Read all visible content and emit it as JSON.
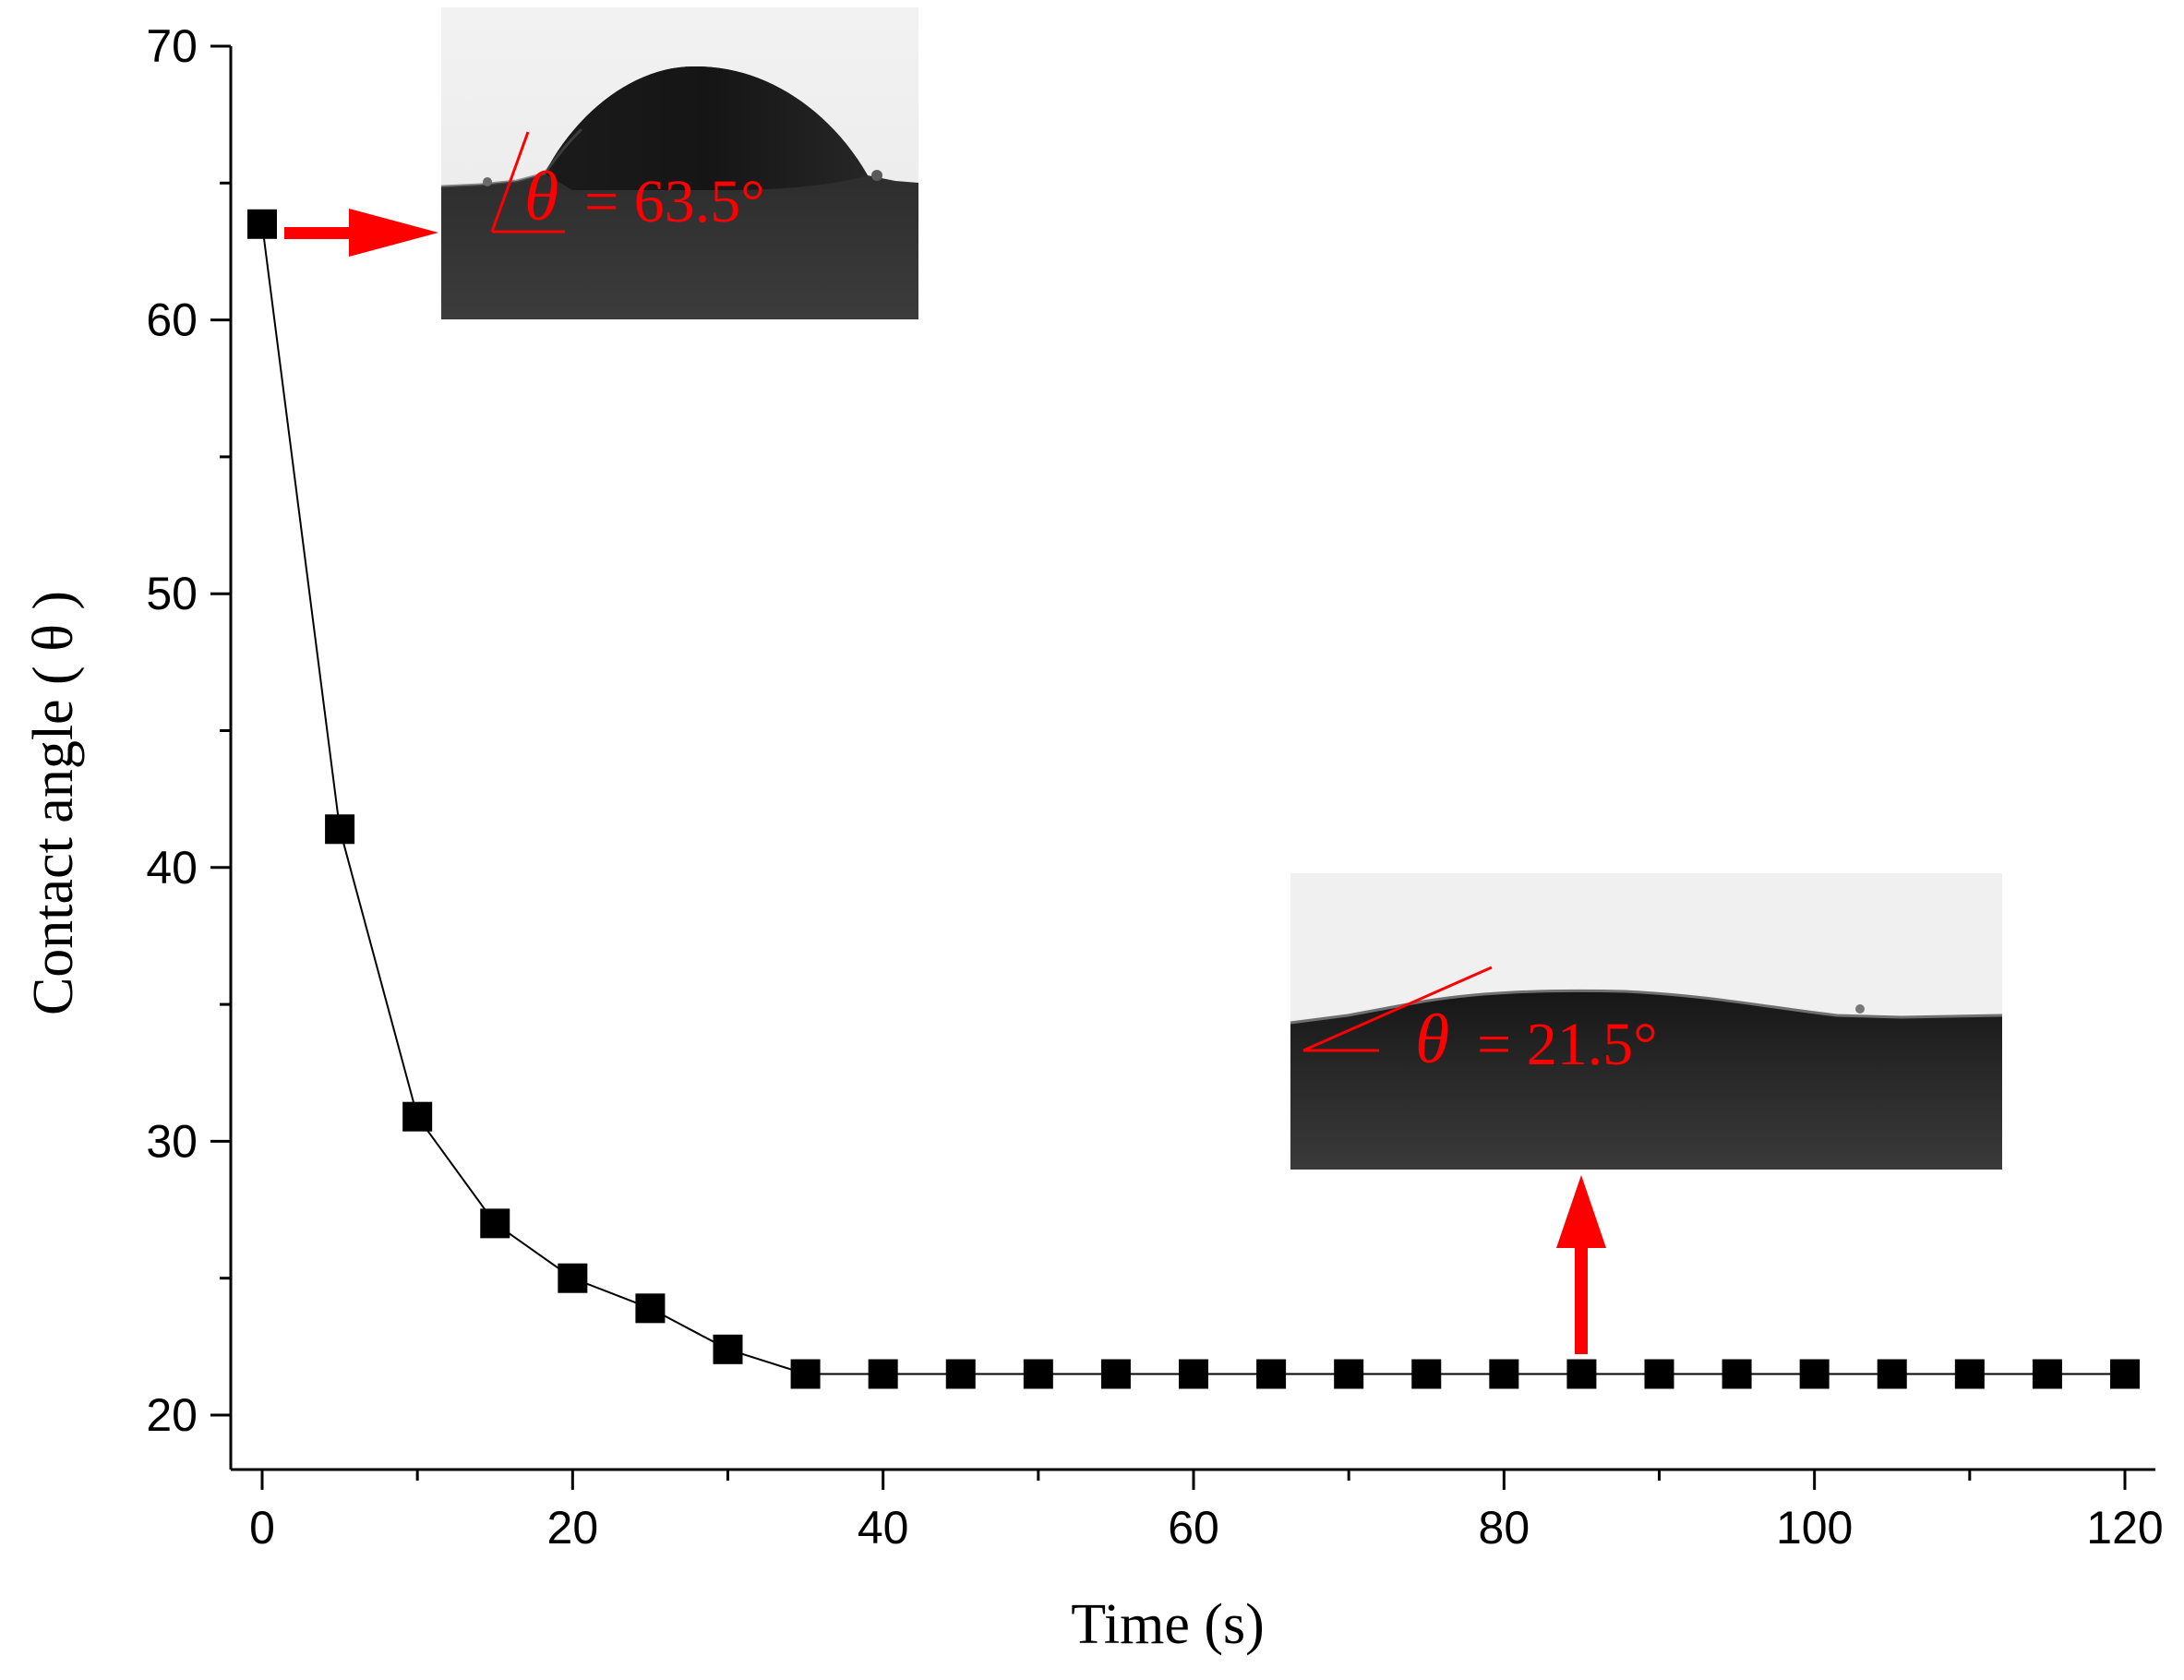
{
  "chart_data": {
    "type": "line",
    "title": "",
    "xlabel": "Time (s)",
    "ylabel": "Contact angle ( θ )",
    "xlim": [
      -3,
      122
    ],
    "ylim": [
      18,
      70
    ],
    "xticks": [
      0,
      20,
      40,
      60,
      80,
      100,
      120
    ],
    "yticks": [
      20,
      30,
      40,
      50,
      60,
      70
    ],
    "grid": false,
    "legend": "none",
    "marker": "square",
    "colors": {
      "series": "#000000",
      "annotation": "#ff0000"
    },
    "series": [
      {
        "x": [
          0,
          5,
          10,
          15,
          20,
          25,
          30,
          35,
          40,
          45,
          50,
          55,
          60,
          65,
          70,
          75,
          80,
          85,
          90,
          95,
          100,
          105,
          110,
          115,
          120
        ],
        "y": [
          63.5,
          41.4,
          30.9,
          27.0,
          25.0,
          23.9,
          22.4,
          21.5,
          21.5,
          21.5,
          21.5,
          21.5,
          21.5,
          21.5,
          21.5,
          21.5,
          21.5,
          21.5,
          21.5,
          21.5,
          21.5,
          21.5,
          21.5,
          21.5,
          21.5
        ]
      }
    ],
    "annotations": [
      {
        "symbol": "θ",
        "text": "= 63.5°",
        "points_to": {
          "x": 0,
          "y": 63.5
        },
        "arrow": "right",
        "image": "droplet-photo-initial"
      },
      {
        "symbol": "θ",
        "text": "= 21.5°",
        "points_to": {
          "x": 85,
          "y": 21.5
        },
        "arrow": "up",
        "image": "droplet-photo-final"
      }
    ]
  }
}
